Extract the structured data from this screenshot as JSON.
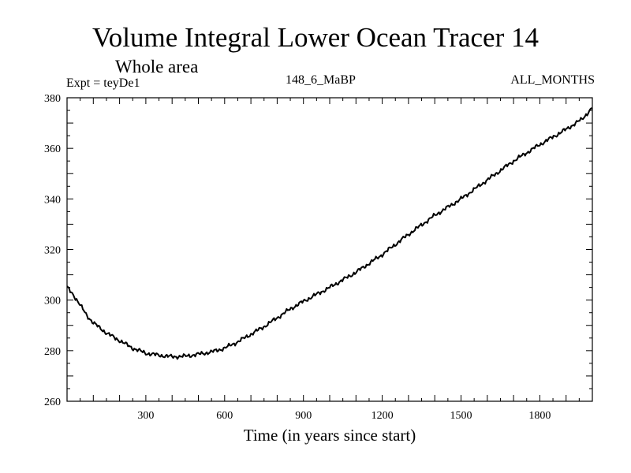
{
  "chart_data": {
    "type": "line",
    "title": "Volume Integral Lower Ocean Tracer 14",
    "subtitle": "Whole area",
    "annotations": {
      "experiment": "Expt = teyDe1",
      "run": "148_6_MaBP",
      "period": "ALL_MONTHS"
    },
    "xlabel": "Time (in years since start)",
    "ylabel": "",
    "xlim": [
      0,
      2000
    ],
    "ylim": [
      260,
      380
    ],
    "x_ticks": [
      300,
      600,
      900,
      1200,
      1500,
      1800
    ],
    "y_ticks": [
      260,
      280,
      300,
      320,
      340,
      360,
      380
    ],
    "grid": false,
    "series": [
      {
        "name": "Tracer 14",
        "x": [
          0,
          25,
          50,
          75,
          100,
          150,
          200,
          250,
          300,
          350,
          400,
          450,
          500,
          550,
          600,
          650,
          700,
          750,
          800,
          850,
          900,
          1000,
          1100,
          1200,
          1300,
          1400,
          1500,
          1600,
          1700,
          1800,
          1900,
          1960,
          2000
        ],
        "values": [
          305,
          302,
          298,
          294,
          291,
          287,
          284,
          281,
          279,
          278.2,
          277.6,
          277.8,
          278.6,
          279.5,
          281,
          283.5,
          286.5,
          289.5,
          293,
          296.5,
          299.5,
          305,
          311,
          318,
          326,
          333.5,
          340,
          347.5,
          355,
          361.5,
          367.5,
          371.5,
          376
        ]
      }
    ]
  }
}
